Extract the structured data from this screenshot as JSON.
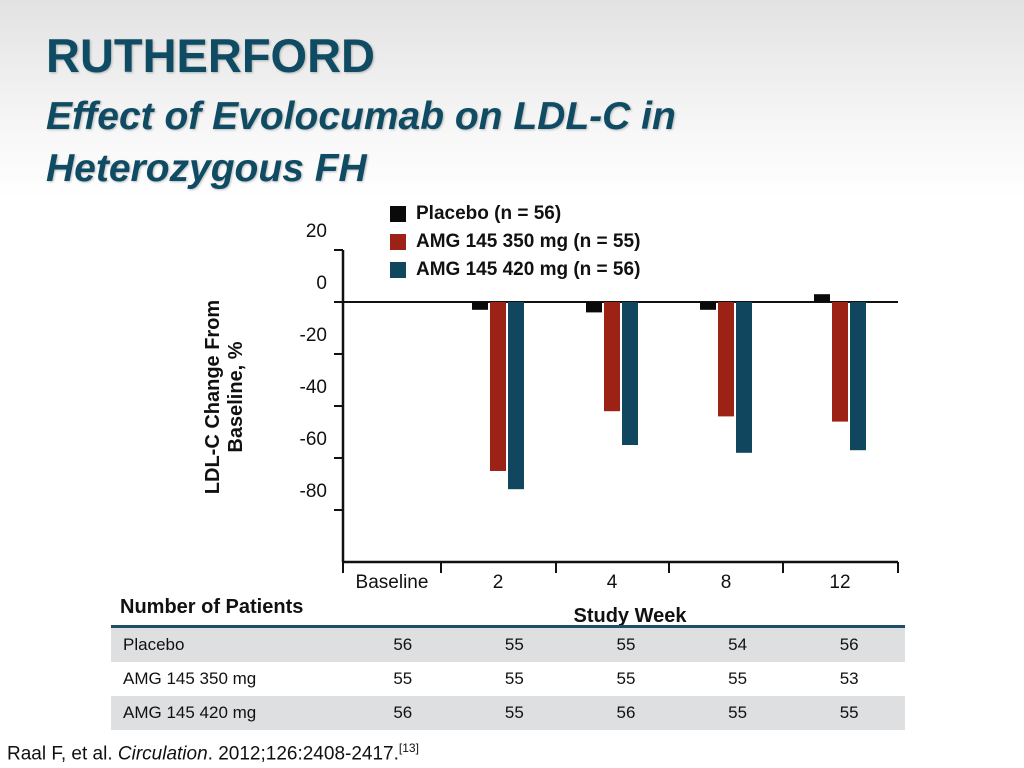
{
  "slide": {
    "title": "RUTHERFORD",
    "subtitle": "Effect of Evolocumab on LDL-C in Heterozygous FH"
  },
  "chart_data": {
    "type": "bar",
    "categories": [
      "2",
      "4",
      "8",
      "12"
    ],
    "extra_x_tick": "Baseline",
    "xlabel": "Study Week",
    "ylabel_lines": [
      "LDL-C Change From",
      "Baseline, %"
    ],
    "ylim": [
      -100,
      20
    ],
    "yticks": [
      20,
      0,
      -20,
      -40,
      -60,
      -80
    ],
    "legend_position": "top",
    "series": [
      {
        "name": "Placebo (n = 56)",
        "color": "#0a0a0a",
        "values": [
          -3,
          -4,
          -3,
          3
        ]
      },
      {
        "name": "AMG 145 350 mg (n = 55)",
        "color": "#9b2214",
        "values": [
          -65,
          -42,
          -44,
          -46
        ]
      },
      {
        "name": "AMG 145 420 mg (n = 56)",
        "color": "#10475e",
        "values": [
          -72,
          -55,
          -58,
          -57
        ]
      }
    ]
  },
  "patients_table": {
    "title": "Number of Patients",
    "rows": [
      {
        "label": "Placebo",
        "values": [
          "56",
          "55",
          "55",
          "54",
          "56"
        ]
      },
      {
        "label": "AMG 145 350 mg",
        "values": [
          "55",
          "55",
          "55",
          "55",
          "53"
        ]
      },
      {
        "label": "AMG 145 420 mg",
        "values": [
          "56",
          "55",
          "56",
          "55",
          "55"
        ]
      }
    ]
  },
  "citation": {
    "authors": "Raal F, et al. ",
    "journal": "Circulation",
    "details": ". 2012;126:2408-2417.",
    "ref": "[13]"
  }
}
